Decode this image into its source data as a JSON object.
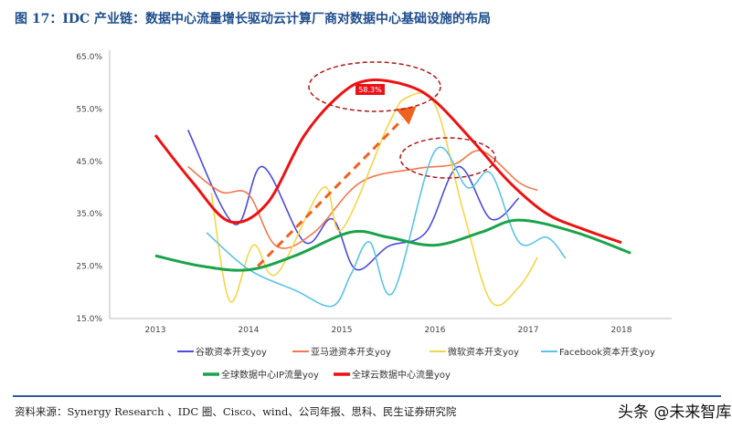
{
  "title": "图 17：IDC 产业链：数据中心流量增长驱动云计算厂商对数据中心基础设施的布局",
  "source": "资料来源：Synergy Research 、IDC 圈、Cisco、wind、公司年报、思科、民生证券研究院",
  "watermark": "头条 @未来智库",
  "chart_data": {
    "type": "line",
    "xlim": [
      2012.6,
      2018.5
    ],
    "ylim": [
      15,
      65
    ],
    "x_ticks": [
      "2013",
      "2014",
      "2015",
      "2016",
      "2017",
      "2018"
    ],
    "y_ticks": [
      "65.0%",
      "55.0%",
      "45.0%",
      "35.0%",
      "25.0%",
      "15.0%"
    ],
    "grid": false,
    "legend_placement": "bottom",
    "annotation": "58.3%",
    "series": [
      {
        "name": "谷歌资本开支yoy",
        "color": "#4b4be0",
        "points": [
          [
            2013.35,
            51
          ],
          [
            2013.85,
            33
          ],
          [
            2014.15,
            44
          ],
          [
            2014.6,
            29.6
          ],
          [
            2014.9,
            34
          ],
          [
            2015.15,
            24.4
          ],
          [
            2015.5,
            28.8
          ],
          [
            2015.9,
            31.4
          ],
          [
            2016.25,
            44
          ],
          [
            2016.6,
            34
          ],
          [
            2016.9,
            38
          ]
        ]
      },
      {
        "name": "亚马逊资本开支yoy",
        "color": "#f07850",
        "points": [
          [
            2013.35,
            44
          ],
          [
            2013.7,
            39.2
          ],
          [
            2014.0,
            38.7
          ],
          [
            2014.3,
            28.8
          ],
          [
            2014.7,
            31.4
          ],
          [
            2015.2,
            41
          ],
          [
            2015.8,
            43.6
          ],
          [
            2016.2,
            44.4
          ],
          [
            2016.5,
            47
          ],
          [
            2016.9,
            41
          ],
          [
            2017.1,
            39.5
          ]
        ]
      },
      {
        "name": "微软资本开支yoy",
        "color": "#f5d547",
        "points": [
          [
            2013.6,
            39
          ],
          [
            2013.8,
            18.3
          ],
          [
            2014.05,
            29
          ],
          [
            2014.3,
            23.5
          ],
          [
            2014.8,
            40
          ],
          [
            2015.0,
            32
          ],
          [
            2015.5,
            52
          ],
          [
            2015.7,
            57.2
          ],
          [
            2016.0,
            55.8
          ],
          [
            2016.3,
            35.7
          ],
          [
            2016.6,
            18.3
          ],
          [
            2016.9,
            21
          ],
          [
            2017.1,
            26.7
          ]
        ]
      },
      {
        "name": "Facebook资本开支yoy",
        "color": "#5bc3e6",
        "points": [
          [
            2013.55,
            31.4
          ],
          [
            2014.0,
            24.4
          ],
          [
            2014.5,
            20.4
          ],
          [
            2014.9,
            17.4
          ],
          [
            2015.1,
            23.5
          ],
          [
            2015.3,
            29.6
          ],
          [
            2015.55,
            20
          ],
          [
            2016.0,
            47
          ],
          [
            2016.35,
            40
          ],
          [
            2016.6,
            42.7
          ],
          [
            2016.9,
            29.6
          ],
          [
            2017.2,
            30.5
          ],
          [
            2017.4,
            26.5
          ]
        ]
      },
      {
        "name": "全球数据中心IP流量yoy",
        "color": "#1aa34a",
        "points": [
          [
            2013,
            27
          ],
          [
            2013.5,
            25
          ],
          [
            2014,
            24.3
          ],
          [
            2014.5,
            27
          ],
          [
            2015.1,
            31.5
          ],
          [
            2015.5,
            30.5
          ],
          [
            2016,
            29
          ],
          [
            2016.5,
            31.5
          ],
          [
            2016.9,
            33.8
          ],
          [
            2017.5,
            31.5
          ],
          [
            2018.1,
            27.5
          ]
        ]
      },
      {
        "name": "全球云数据中心流量yoy",
        "color": "#ee1111",
        "points": [
          [
            2013,
            50
          ],
          [
            2013.4,
            41
          ],
          [
            2013.8,
            33.5
          ],
          [
            2014.2,
            37
          ],
          [
            2014.6,
            50
          ],
          [
            2015.0,
            58
          ],
          [
            2015.3,
            60.5
          ],
          [
            2015.7,
            59.5
          ],
          [
            2016.0,
            56.5
          ],
          [
            2016.4,
            49
          ],
          [
            2016.8,
            41
          ],
          [
            2017.2,
            35
          ],
          [
            2017.6,
            32
          ],
          [
            2018.0,
            29.5
          ]
        ]
      }
    ]
  }
}
